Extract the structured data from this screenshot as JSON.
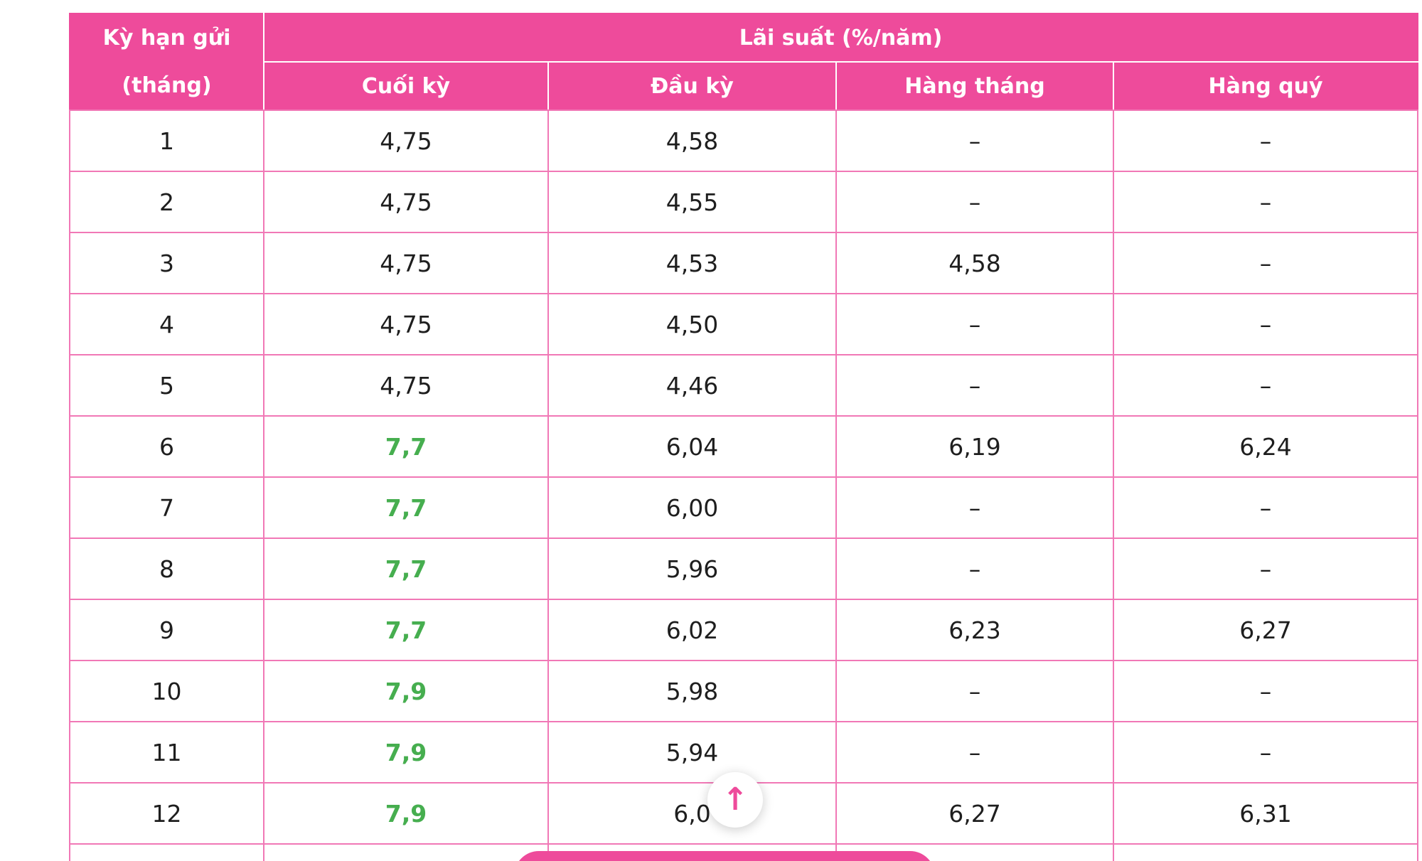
{
  "colors": {
    "header_bg": "#ee4b9b",
    "border": "#f178b6",
    "green": "#46ae4f",
    "text": "#1e1e1e"
  },
  "table": {
    "term_header_line1": "Kỳ hạn gửi",
    "term_header_line2": "(tháng)",
    "rate_group_header": "Lãi suất (%/năm)",
    "sub_headers": [
      "Cuối kỳ",
      "Đầu kỳ",
      "Hàng tháng",
      "Hàng quý"
    ],
    "rows": [
      {
        "term": "1",
        "values": [
          "4,75",
          "4,58",
          "–",
          "–"
        ],
        "green": false
      },
      {
        "term": "2",
        "values": [
          "4,75",
          "4,55",
          "–",
          "–"
        ],
        "green": false
      },
      {
        "term": "3",
        "values": [
          "4,75",
          "4,53",
          "4,58",
          "–"
        ],
        "green": false
      },
      {
        "term": "4",
        "values": [
          "4,75",
          "4,50",
          "–",
          "–"
        ],
        "green": false
      },
      {
        "term": "5",
        "values": [
          "4,75",
          "4,46",
          "–",
          "–"
        ],
        "green": false
      },
      {
        "term": "6",
        "values": [
          "7,7",
          "6,04",
          "6,19",
          "6,24"
        ],
        "green": true
      },
      {
        "term": "7",
        "values": [
          "7,7",
          "6,00",
          "–",
          "–"
        ],
        "green": true
      },
      {
        "term": "8",
        "values": [
          "7,7",
          "5,96",
          "–",
          "–"
        ],
        "green": true
      },
      {
        "term": "9",
        "values": [
          "7,7",
          "6,02",
          "6,23",
          "6,27"
        ],
        "green": true
      },
      {
        "term": "10",
        "values": [
          "7,9",
          "5,98",
          "–",
          "–"
        ],
        "green": true
      },
      {
        "term": "11",
        "values": [
          "7,9",
          "5,94",
          "–",
          "–"
        ],
        "green": true
      },
      {
        "term": "12",
        "values": [
          "7,9",
          "6,0",
          "6,27",
          "6,31"
        ],
        "green": true
      }
    ]
  },
  "scroll_top_button": {
    "icon": "up-arrow",
    "glyph": "↑"
  }
}
